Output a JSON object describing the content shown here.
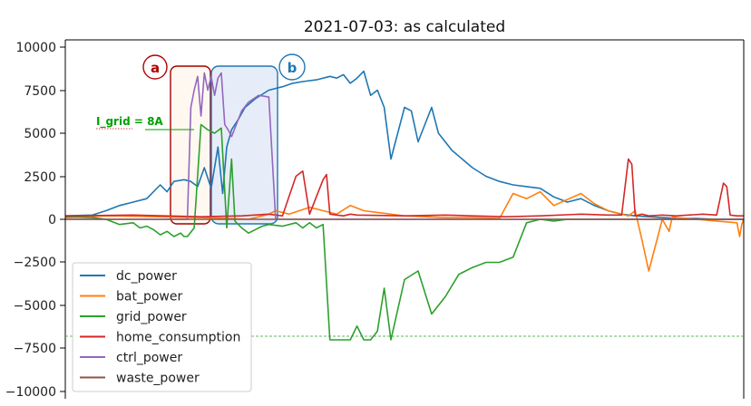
{
  "chart_data": {
    "type": "line",
    "title": "2021-07-03: as calculated",
    "ylim": [
      -10500,
      10500
    ],
    "yticks": [
      10000,
      7500,
      5000,
      2500,
      0,
      -2500,
      -5000,
      -7500,
      -10000
    ],
    "ytick_labels": [
      "10000",
      "7500",
      "5000",
      "2500",
      "0",
      "−2500",
      "−5000",
      "−7500",
      "−10000"
    ],
    "grid": false,
    "legend_placement": "lower-left",
    "x_domain": [
      0,
      1000
    ],
    "series": [
      {
        "name": "dc_power",
        "color": "#1f77b4",
        "x": [
          0,
          40,
          60,
          80,
          100,
          120,
          140,
          150,
          160,
          175,
          185,
          195,
          205,
          215,
          225,
          232,
          238,
          245,
          255,
          265,
          280,
          300,
          320,
          335,
          350,
          370,
          390,
          400,
          410,
          420,
          430,
          440,
          450,
          460,
          470,
          480,
          490,
          500,
          510,
          520,
          530,
          540,
          550,
          560,
          570,
          585,
          600,
          620,
          640,
          660,
          680,
          700,
          720,
          740,
          760,
          780,
          800,
          820,
          840,
          860,
          880,
          900,
          930,
          960,
          1000
        ],
        "y": [
          200,
          250,
          500,
          800,
          1000,
          1200,
          2000,
          1600,
          2200,
          2300,
          2200,
          1900,
          3000,
          1800,
          4200,
          1500,
          4200,
          5200,
          5800,
          6500,
          7000,
          7500,
          7700,
          7900,
          8000,
          8100,
          8300,
          8200,
          8400,
          7900,
          8200,
          8600,
          7200,
          7500,
          6500,
          3500,
          5000,
          6500,
          6300,
          4500,
          5500,
          6500,
          5000,
          4500,
          4000,
          3500,
          3000,
          2500,
          2200,
          2000,
          1900,
          1800,
          1300,
          1000,
          1200,
          800,
          500,
          300,
          200,
          150,
          100,
          50,
          50,
          0,
          0
        ]
      },
      {
        "name": "bat_power",
        "color": "#ff7f0e",
        "x": [
          0,
          60,
          200,
          240,
          270,
          300,
          310,
          330,
          360,
          380,
          400,
          420,
          440,
          460,
          480,
          500,
          530,
          560,
          600,
          640,
          660,
          680,
          700,
          720,
          760,
          770,
          780,
          790,
          800,
          810,
          830,
          840,
          850,
          860,
          870,
          880,
          890,
          895,
          900,
          930,
          960,
          990,
          994,
          997,
          1000
        ],
        "y": [
          100,
          200,
          100,
          50,
          0,
          300,
          500,
          300,
          700,
          500,
          300,
          800,
          500,
          400,
          300,
          200,
          150,
          100,
          100,
          50,
          1500,
          1200,
          1600,
          800,
          1500,
          1200,
          900,
          700,
          500,
          400,
          200,
          500,
          -1200,
          -3000,
          -1500,
          0,
          -700,
          200,
          100,
          0,
          -100,
          -200,
          -1000,
          -300,
          0
        ]
      },
      {
        "name": "grid_power",
        "color": "#2ca02c",
        "x": [
          0,
          40,
          60,
          80,
          100,
          110,
          120,
          130,
          140,
          150,
          160,
          170,
          175,
          180,
          190,
          200,
          210,
          220,
          230,
          238,
          245,
          250,
          260,
          270,
          280,
          290,
          300,
          320,
          340,
          350,
          360,
          370,
          380,
          390,
          400,
          410,
          420,
          430,
          440,
          450,
          460,
          470,
          480,
          500,
          520,
          540,
          560,
          580,
          600,
          620,
          640,
          660,
          680,
          700,
          720,
          740,
          760,
          800,
          860,
          900,
          960,
          1000
        ],
        "y": [
          150,
          100,
          0,
          -300,
          -200,
          -500,
          -400,
          -600,
          -900,
          -700,
          -1000,
          -800,
          -1000,
          -1000,
          -500,
          5500,
          5200,
          5000,
          5300,
          -500,
          3500,
          -100,
          -500,
          -800,
          -600,
          -400,
          -300,
          -400,
          -200,
          -500,
          -200,
          -500,
          -300,
          -7000,
          -7000,
          -7000,
          -7000,
          -6200,
          -7000,
          -7000,
          -6500,
          -4000,
          -7000,
          -3500,
          -3000,
          -5500,
          -4500,
          -3200,
          -2800,
          -2500,
          -2500,
          -2200,
          -200,
          0,
          -100,
          0,
          0,
          0,
          0,
          0,
          0,
          0
        ]
      },
      {
        "name": "home_consumption",
        "color": "#d62728",
        "x": [
          0,
          100,
          200,
          260,
          300,
          320,
          340,
          350,
          360,
          380,
          385,
          390,
          400,
          410,
          420,
          430,
          500,
          560,
          600,
          650,
          700,
          760,
          800,
          820,
          830,
          835,
          840,
          850,
          860,
          880,
          900,
          940,
          960,
          970,
          975,
          980,
          990,
          1000
        ],
        "y": [
          200,
          250,
          150,
          200,
          300,
          200,
          2500,
          2800,
          300,
          2300,
          2600,
          300,
          250,
          200,
          300,
          250,
          200,
          250,
          200,
          150,
          200,
          300,
          250,
          250,
          3500,
          3200,
          200,
          300,
          200,
          250,
          200,
          300,
          250,
          2100,
          1900,
          250,
          200,
          200
        ]
      },
      {
        "name": "ctrl_power",
        "color": "#9467bd",
        "x": [
          0,
          180,
          185,
          190,
          195,
          200,
          205,
          210,
          215,
          220,
          225,
          230,
          235,
          240,
          245,
          250,
          255,
          260,
          270,
          285,
          300,
          310,
          350,
          1000
        ],
        "y": [
          0,
          0,
          6500,
          7500,
          8300,
          6000,
          8500,
          7500,
          8300,
          7200,
          8200,
          8500,
          5500,
          5200,
          4800,
          5300,
          5800,
          6300,
          6800,
          7200,
          7100,
          0,
          0,
          0
        ]
      },
      {
        "name": "waste_power",
        "color": "#8c564b",
        "x": [
          0,
          1000
        ],
        "y": [
          0,
          0
        ]
      }
    ],
    "annotations": [
      {
        "text": "a",
        "color": "#b00000"
      },
      {
        "text": "b",
        "color": "#1f77b4"
      },
      {
        "text": "I_grid = 8A",
        "color": "#00a000"
      }
    ]
  }
}
